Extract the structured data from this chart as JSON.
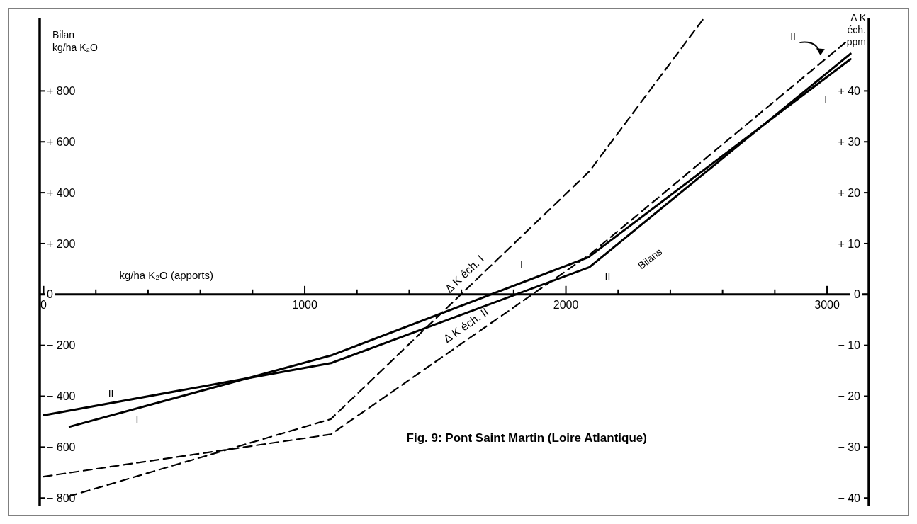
{
  "chart_data": {
    "type": "line",
    "title": "Fig. 9: Pont Saint Martin (Loire Atlantique)",
    "xlabel": "kg/ha K₂O (apports)",
    "ylabel": "Bilan kg/ha K₂O",
    "y2label": "Δ K éch. ppm",
    "xlim": [
      -15,
      3160
    ],
    "ylim": [
      -830,
      1085
    ],
    "y2lim": [
      -41.5,
      54.25
    ],
    "xticks": [
      0,
      {
        "value": 200,
        "label": null
      },
      {
        "value": 400,
        "label": null
      },
      {
        "value": 600,
        "label": null
      },
      {
        "value": 800,
        "label": null
      },
      1000,
      {
        "value": 1200,
        "label": null
      },
      {
        "value": 1400,
        "label": null
      },
      {
        "value": 1600,
        "label": null
      },
      {
        "value": 1800,
        "label": null
      },
      2000,
      {
        "value": 2200,
        "label": null
      },
      {
        "value": 2400,
        "label": null
      },
      {
        "value": 2600,
        "label": null
      },
      {
        "value": 2800,
        "label": null
      },
      3000
    ],
    "yticks": [
      {
        "value": -800,
        "label": "− 800"
      },
      {
        "value": -600,
        "label": "− 600"
      },
      {
        "value": -400,
        "label": "− 400"
      },
      {
        "value": -200,
        "label": "− 200"
      },
      0,
      {
        "value": 200,
        "label": "+ 200"
      },
      {
        "value": 400,
        "label": "+ 400"
      },
      {
        "value": 600,
        "label": "+ 600"
      },
      {
        "value": 800,
        "label": "+ 800"
      }
    ],
    "y2ticks": [
      {
        "value": -40,
        "label": "− 40"
      },
      {
        "value": -30,
        "label": "− 30"
      },
      {
        "value": -20,
        "label": "− 20"
      },
      {
        "value": -10,
        "label": "− 10"
      },
      0,
      {
        "value": 10,
        "label": "+ 10"
      },
      {
        "value": 20,
        "label": "+ 20"
      },
      {
        "value": 30,
        "label": "+ 30"
      },
      {
        "value": 40,
        "label": "+ 40"
      }
    ],
    "grid": false,
    "marker": "none",
    "series": [
      {
        "name": "I",
        "type": "line",
        "color": "#000000",
        "line_style": "solid",
        "x": [
          100,
          1100,
          2086,
          3090
        ],
        "values": [
          -520,
          -240,
          146,
          925
        ]
      },
      {
        "name": "II",
        "type": "line",
        "color": "#000000",
        "line_style": "solid",
        "x": [
          0,
          1100,
          2090,
          3090
        ],
        "values": [
          -475,
          -270,
          107,
          946
        ]
      },
      {
        "name": "Δ K éch. I",
        "type": "line",
        "color": "#000000",
        "line_style": "dashed",
        "axis": "y2",
        "x": [
          95,
          1100,
          2090,
          2524
        ],
        "values": [
          -39.7,
          -24.5,
          24.2,
          54
        ]
      },
      {
        "name": "Δ K éch. II",
        "type": "line",
        "color": "#000000",
        "line_style": "dashed",
        "axis": "y2",
        "x": [
          0,
          1100,
          2090,
          3070
        ],
        "values": [
          -35.8,
          -27.5,
          7.8,
          49.5
        ]
      }
    ],
    "annotations": [
      "I",
      "II",
      "II",
      "I",
      "Bilans"
    ]
  }
}
